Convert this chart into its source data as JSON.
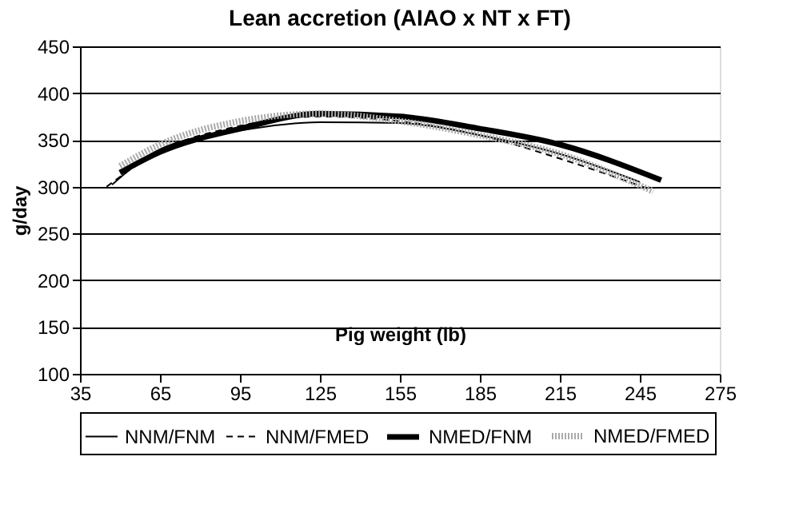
{
  "chart_data": {
    "type": "line",
    "title": "Lean accretion (AIAO x NT x FT)",
    "xlabel": "Pig weight (lb)",
    "ylabel": "g/day",
    "xlim": [
      35,
      275
    ],
    "xticks": [
      35,
      65,
      95,
      125,
      155,
      185,
      215,
      245,
      275
    ],
    "ylim": [
      100,
      450
    ],
    "yticks": [
      100,
      150,
      200,
      250,
      300,
      350,
      400,
      450
    ],
    "grid": "y",
    "legend": "bottom",
    "marker": "none",
    "series": [
      {
        "name": "NNM/FNM",
        "color": "#000000",
        "line_style": "solid",
        "x": [
          47,
          65,
          95,
          125,
          155,
          185,
          215,
          245
        ],
        "values": [
          302,
          340,
          360,
          369,
          368,
          355,
          335,
          305
        ]
      },
      {
        "name": "NNM/FMED",
        "color": "#000000",
        "line_style": "dashed",
        "x": [
          45,
          65,
          95,
          125,
          155,
          185,
          215,
          248
        ],
        "values": [
          300,
          338,
          365,
          375,
          370,
          355,
          330,
          298
        ]
      },
      {
        "name": "NMED/FNM",
        "color": "#000000",
        "line_style": "solid",
        "x": [
          50,
          65,
          95,
          125,
          155,
          185,
          215,
          253
        ],
        "values": [
          315,
          337,
          362,
          378,
          375,
          362,
          345,
          307
        ]
      },
      {
        "name": "NMED/FMED",
        "color": "#aaaaaa",
        "line_style": "dotted",
        "x": [
          50,
          65,
          95,
          125,
          155,
          185,
          215,
          250
        ],
        "values": [
          322,
          345,
          370,
          378,
          370,
          355,
          335,
          295
        ]
      }
    ]
  }
}
